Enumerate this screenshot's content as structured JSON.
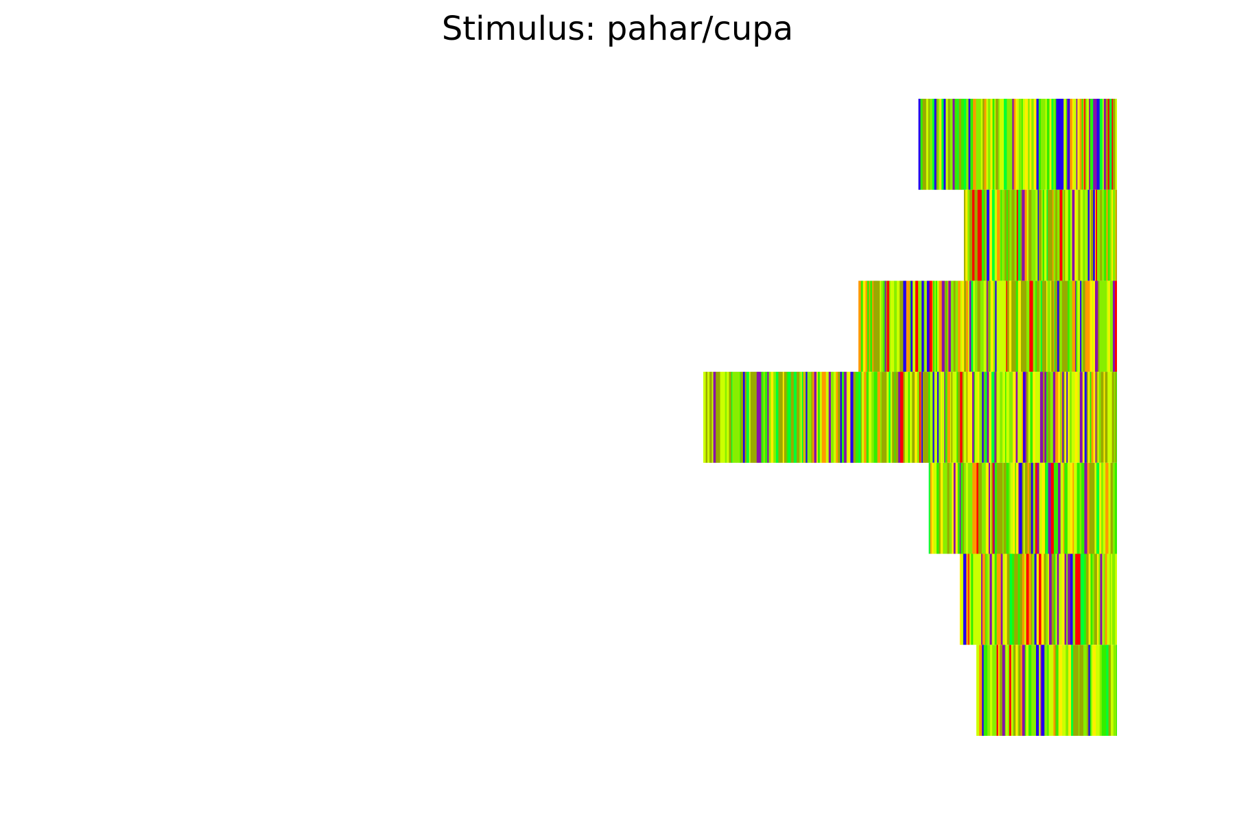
{
  "chart_data": {
    "type": "heatmap",
    "title": "Stimulus: pahar/cupa",
    "xlabel": "",
    "ylabel": "",
    "axes_visible": false,
    "grid": false,
    "legend": "none",
    "rows": [
      {
        "start_fraction": 0.52
      },
      {
        "start_fraction": 0.63
      },
      {
        "start_fraction": 0.375
      },
      {
        "start_fraction": 0.0
      },
      {
        "start_fraction": 0.545
      },
      {
        "start_fraction": 0.62
      },
      {
        "start_fraction": 0.66
      }
    ],
    "colors": {
      "red": "#ff0000",
      "orange": "#ff9900",
      "yellow": "#ffee00",
      "yellow_green": "#ccff00",
      "olive": "#99aa00",
      "lime": "#88ee00",
      "green": "#33ee00",
      "bright_green": "#00ff33",
      "blue": "#2200ee",
      "purple": "#8811aa"
    }
  }
}
